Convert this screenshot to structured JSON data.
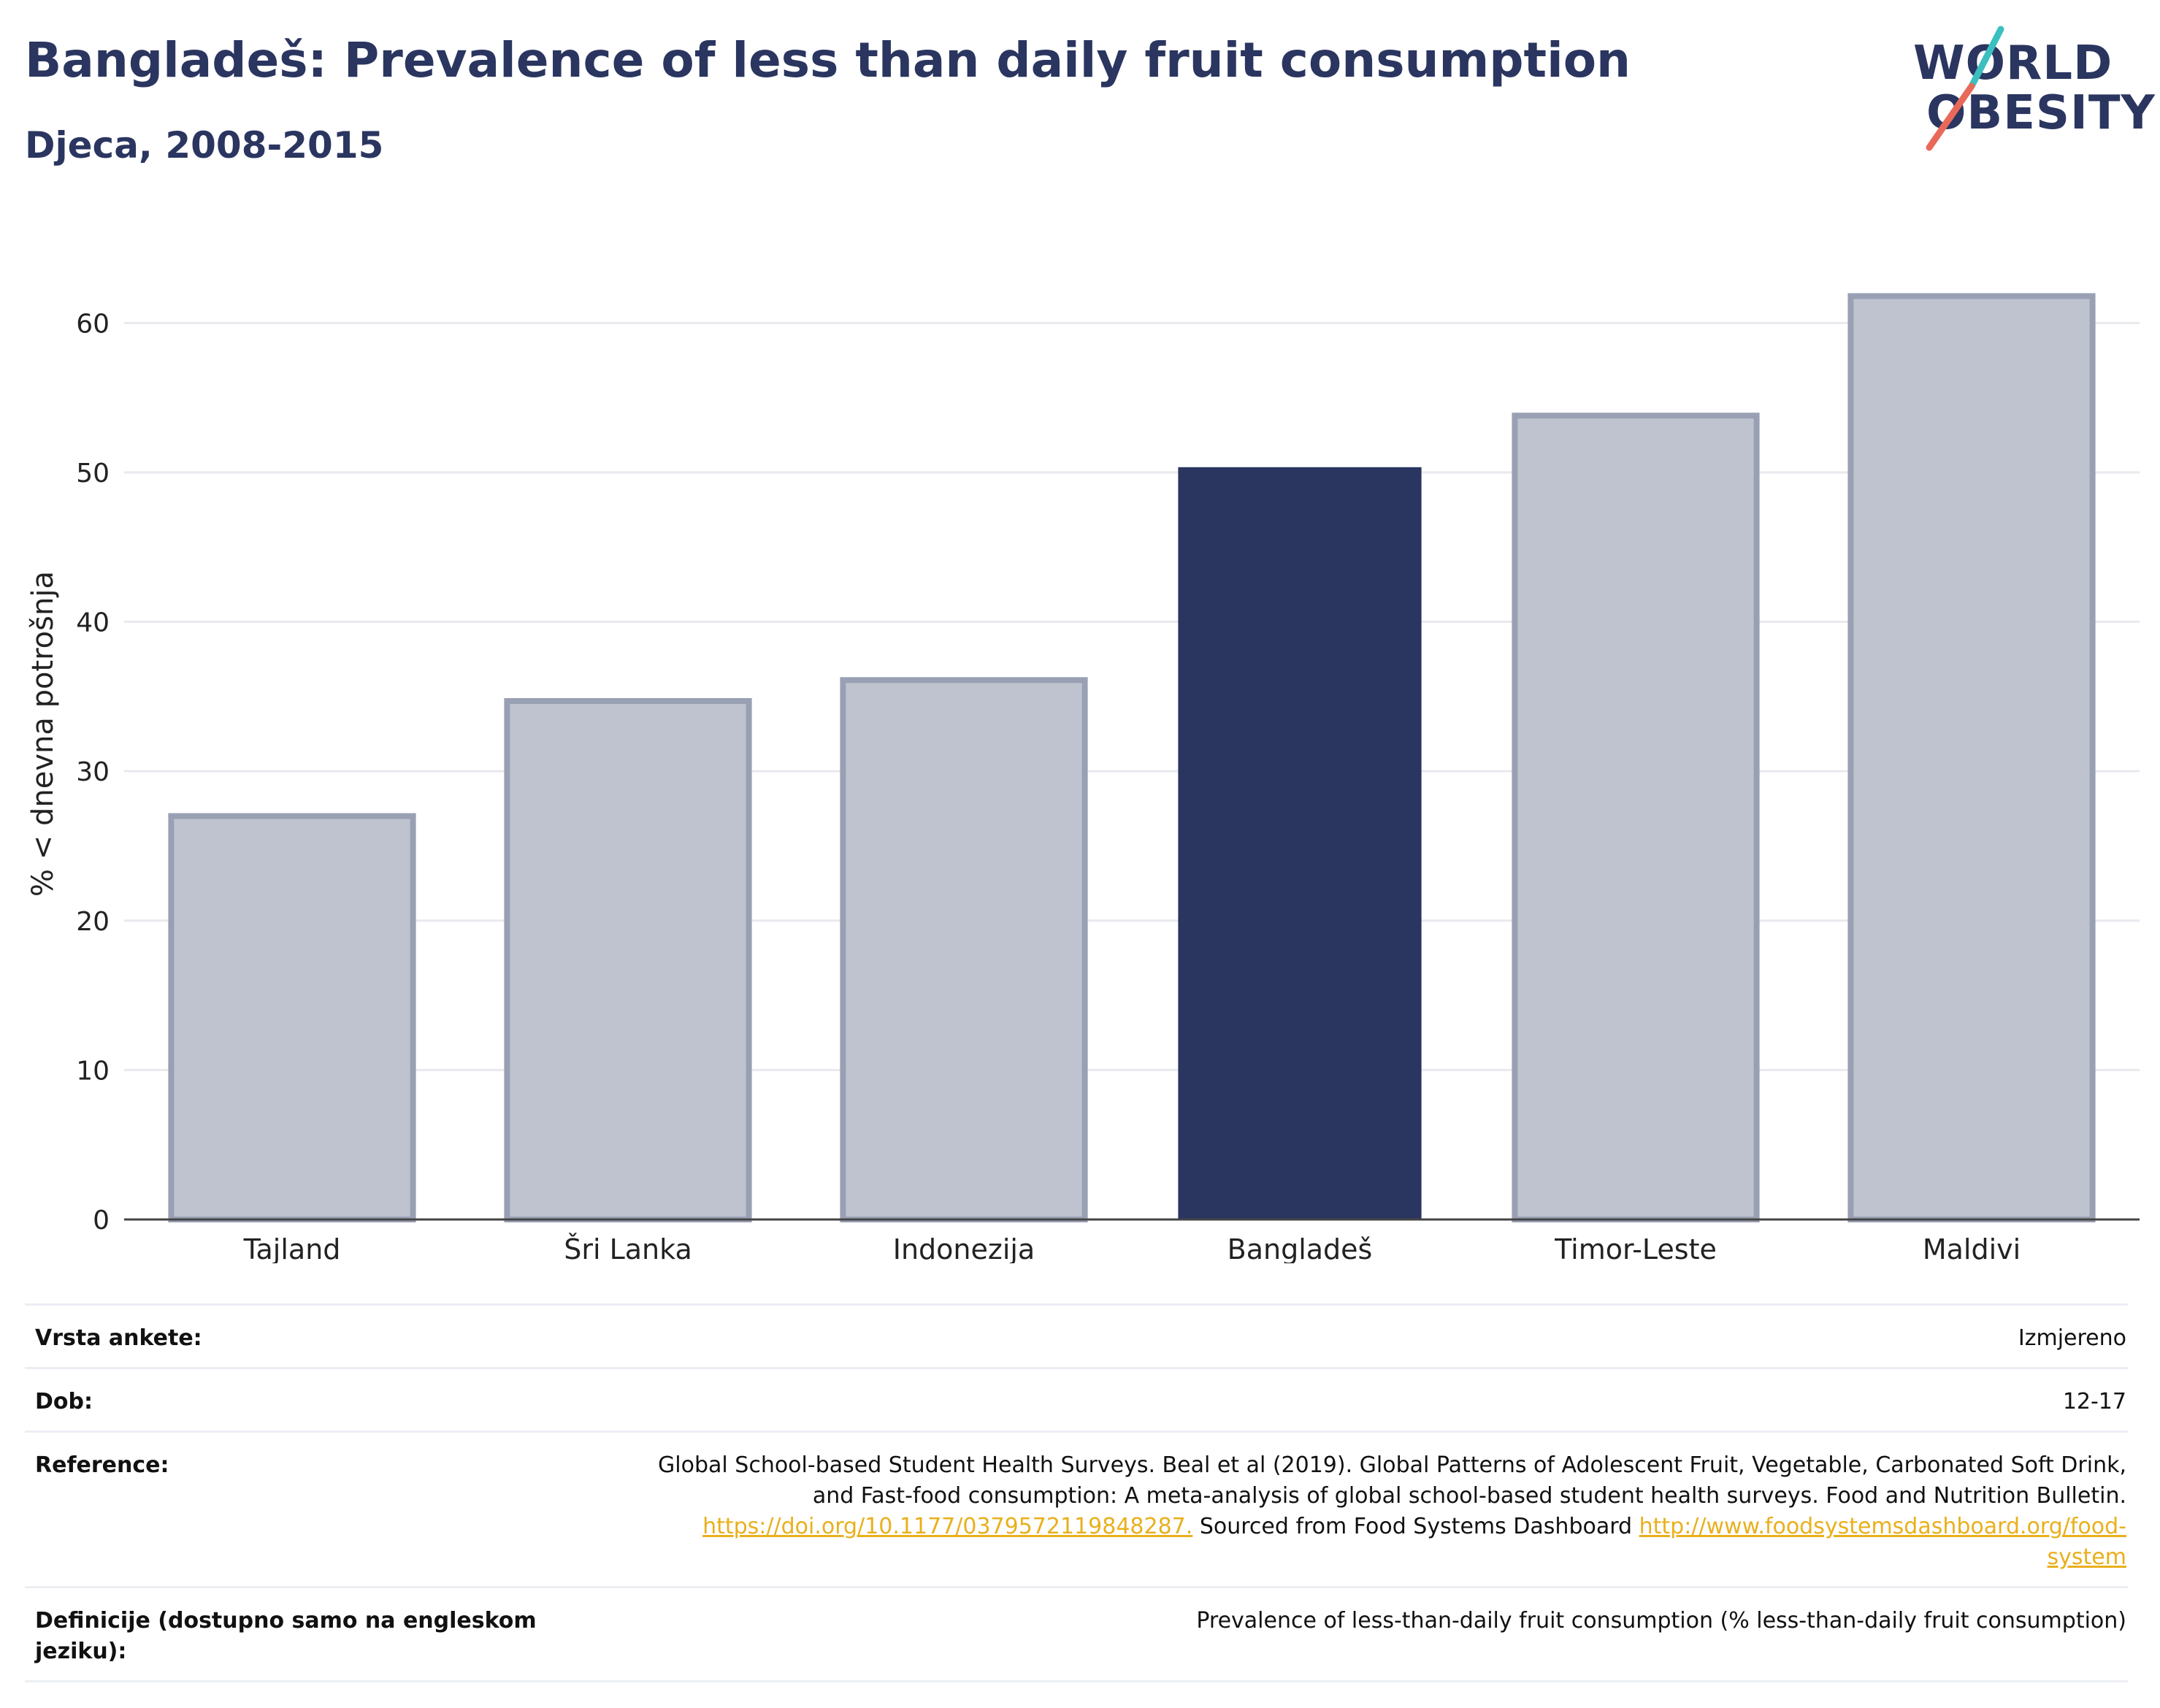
{
  "header": {
    "title": "Bangladeš: Prevalence of less than daily fruit consumption",
    "subtitle": "Djeca, 2008-2015"
  },
  "logo": {
    "line1": "WORLD",
    "line2": "OBESITY",
    "colors": {
      "teal": "#3bbfbf",
      "coral": "#e8695a",
      "navy": "#2a3560"
    }
  },
  "chart_data": {
    "type": "bar",
    "categories": [
      "Tajland",
      "Šri Lanka",
      "Indonezija",
      "Bangladeš",
      "Timor-Leste",
      "Maldivi"
    ],
    "values": [
      27.0,
      34.7,
      36.1,
      50.3,
      53.8,
      61.8
    ],
    "highlight": "Bangladeš",
    "ylabel": "% < dnevna potrošnja",
    "ylim": [
      0,
      65
    ],
    "yticks": [
      0,
      10,
      20,
      30,
      40,
      50,
      60
    ],
    "grid": true,
    "colors": {
      "highlight": "#2a3560",
      "other_fill": "#bfc3cf",
      "other_stroke": "#9aa0b4"
    }
  },
  "info": {
    "rows": [
      {
        "label": "Vrsta ankete:",
        "value": "Izmjereno"
      },
      {
        "label": "Dob:",
        "value": "12-17"
      }
    ],
    "reference": {
      "label": "Reference:",
      "text1": "Global School-based Student Health Surveys. Beal et al (2019). Global Patterns of Adolescent Fruit, Vegetable, Carbonated Soft Drink,",
      "text2": "and Fast-food consumption: A meta-analysis of global school-based student health surveys. Food and Nutrition Bulletin.",
      "link1": "https://doi.org/10.1177/0379572119848287.",
      "text3": " Sourced from Food Systems Dashboard ",
      "link2a": "http://www.foodsystemsdashboard.org/food-",
      "link2b": "system"
    },
    "definition": {
      "label": "Definicije (dostupno samo na engleskom jeziku):",
      "value": "Prevalence of less-than-daily fruit consumption (% less-than-daily fruit consumption)"
    }
  }
}
